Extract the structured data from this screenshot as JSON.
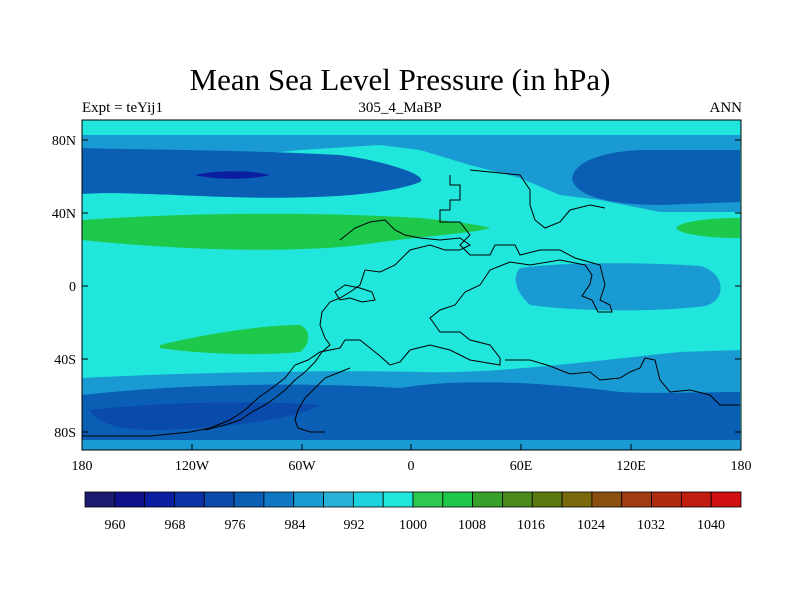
{
  "title": "Mean Sea Level Pressure (in hPa)",
  "subtitle_left": "Expt = teYij1",
  "subtitle_center": "305_4_MaBP",
  "subtitle_right": "ANN",
  "chart_data": {
    "type": "heatmap",
    "variable": "Mean Sea Level Pressure",
    "units": "hPa",
    "x_ticks": [
      "180",
      "120W",
      "60W",
      "0",
      "60E",
      "120E",
      "180"
    ],
    "y_ticks": [
      "80N",
      "40N",
      "0",
      "40S",
      "80S"
    ],
    "xlim": [
      -180,
      180
    ],
    "ylim": [
      -90,
      90
    ],
    "colorbar": {
      "labels": [
        "960",
        "968",
        "976",
        "984",
        "992",
        "1000",
        "1008",
        "1016",
        "1024",
        "1032",
        "1040"
      ],
      "levels": [
        956,
        960,
        964,
        968,
        972,
        976,
        980,
        984,
        988,
        992,
        996,
        1000,
        1004,
        1008,
        1012,
        1016,
        1020,
        1024,
        1028,
        1032,
        1036,
        1040,
        1044
      ],
      "colors": [
        "#1a1a6e",
        "#10128c",
        "#0c1ea0",
        "#0a32a6",
        "#0a4aaa",
        "#0a5fb4",
        "#0e78c4",
        "#1a9ad2",
        "#28b2d8",
        "#1ed2e0",
        "#20e6dc",
        "#2cc850",
        "#1ec84a",
        "#3aa02c",
        "#4a8a1c",
        "#5a7a10",
        "#7a6a0c",
        "#8a5010",
        "#a03c10",
        "#b02c10",
        "#c01c10",
        "#d01010"
      ]
    },
    "fields": {
      "ocean_color": "#20e6dc",
      "low_color": "#0a5fb4",
      "deep_low_color": "#0a4aaa",
      "core_low_color": "#0c1ea0",
      "mid_low_color": "#1a9ad2",
      "high_color": "#1ec84a",
      "mid_high_color": "#2cc850",
      "land_outline": "#000000"
    }
  }
}
